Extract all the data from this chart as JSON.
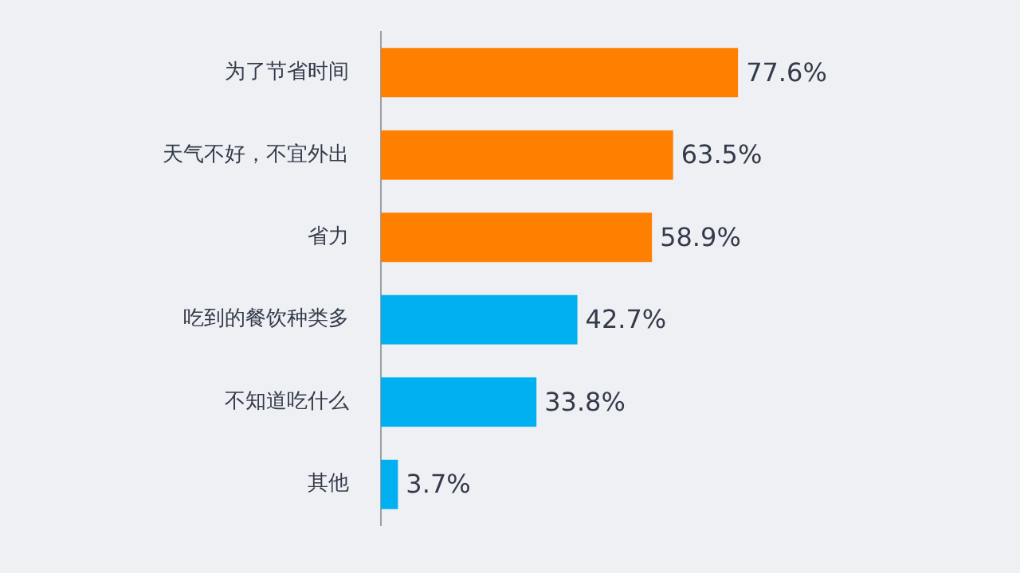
{
  "chart_data": {
    "type": "bar",
    "orientation": "horizontal",
    "categories": [
      "为了节省时间",
      "天气不好，不宜外出",
      "省力",
      "吃到的餐饮种类多",
      "不知道吃什么",
      "其他"
    ],
    "values": [
      77.6,
      63.5,
      58.9,
      42.7,
      33.8,
      3.7
    ],
    "colors": [
      "#ff8000",
      "#ff8000",
      "#ff8000",
      "#00b0f0",
      "#00b0f0",
      "#00b0f0"
    ],
    "value_labels": [
      "77.6%",
      "63.5%",
      "58.9%",
      "42.7%",
      "33.8%",
      "3.7%"
    ],
    "tick_labels": "y",
    "grid": false,
    "legend": false
  }
}
